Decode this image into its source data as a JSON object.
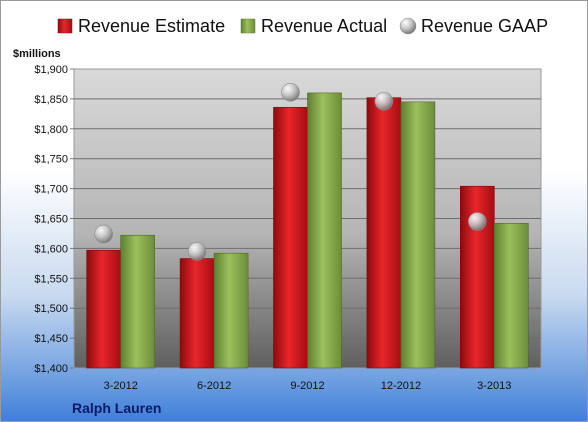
{
  "company_label": "Ralph Lauren",
  "chart_data": {
    "type": "bar",
    "title": "",
    "unit_label": "$millions",
    "categories": [
      "3-2012",
      "6-2012",
      "9-2012",
      "12-2012",
      "3-2013"
    ],
    "series": [
      {
        "name": "Revenue Estimate",
        "values": [
          1597,
          1583,
          1836,
          1852,
          1704
        ],
        "color": "#d0141a",
        "mark": "bar"
      },
      {
        "name": "Revenue Actual",
        "values": [
          1622,
          1592,
          1860,
          1845,
          1642
        ],
        "color": "#8aae4e",
        "mark": "bar"
      },
      {
        "name": "Revenue GAAP",
        "values": [
          1624,
          1595,
          1861,
          1846,
          1645
        ],
        "color": "#c8c8c8",
        "mark": "marker"
      }
    ],
    "ylim": [
      1400,
      1900
    ],
    "yticks": [
      1400,
      1450,
      1500,
      1550,
      1600,
      1650,
      1700,
      1750,
      1800,
      1850,
      1900
    ],
    "ytick_labels": [
      "$1,400",
      "$1,450",
      "$1,500",
      "$1,550",
      "$1,600",
      "$1,650",
      "$1,700",
      "$1,750",
      "$1,800",
      "$1,850",
      "$1,900"
    ],
    "grid": true,
    "legend_position": "top"
  }
}
